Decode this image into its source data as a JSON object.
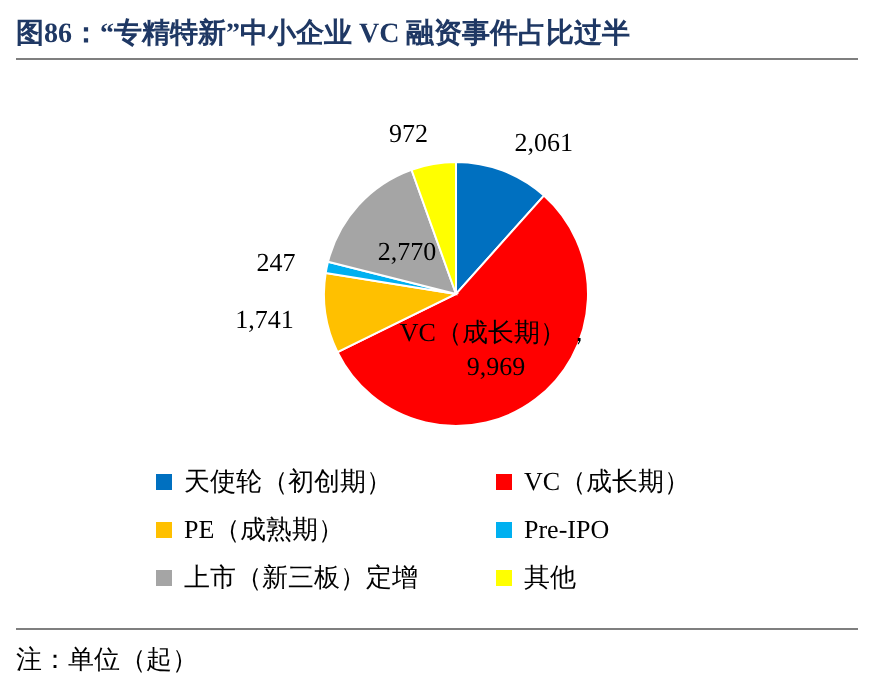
{
  "chart_data": {
    "type": "pie",
    "title": "图86：“专精特新”中小企业 VC 融资事件占比过半",
    "categories": [
      "天使轮（初创期）",
      "VC（成长期）",
      "PE（成熟期）",
      "Pre-IPO",
      "上市（新三板）定增",
      "其他"
    ],
    "values": [
      2061,
      9969,
      1741,
      247,
      2770,
      972
    ],
    "colors": [
      "#0070c0",
      "#ff0000",
      "#ffc000",
      "#00b0f0",
      "#a5a5a5",
      "#ffff00"
    ],
    "value_labels": [
      "2,061",
      "VC（成长期），9,969",
      "1,741",
      "247",
      "2,770",
      "972"
    ],
    "legend": "bottom",
    "annotations": [
      "注：单位（起）"
    ]
  }
}
